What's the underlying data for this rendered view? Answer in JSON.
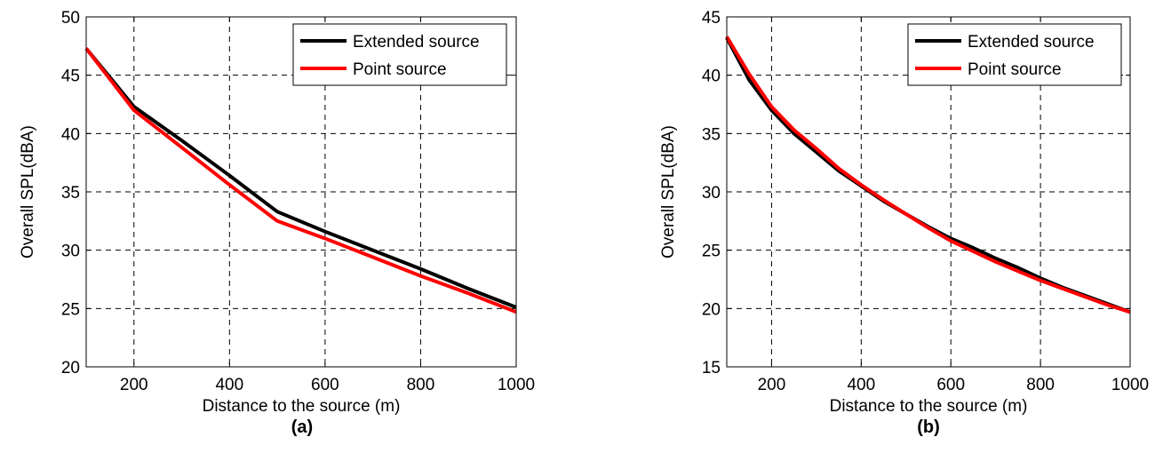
{
  "chart_data": [
    {
      "type": "line",
      "caption": "(a)",
      "xlabel": "Distance to the source (m)",
      "ylabel": "Overall SPL(dBA)",
      "xlim": [
        100,
        1000
      ],
      "ylim": [
        20,
        50
      ],
      "xticks": [
        200,
        400,
        600,
        800,
        1000
      ],
      "yticks": [
        20,
        25,
        30,
        35,
        40,
        45,
        50
      ],
      "grid": true,
      "legend_position": "top-right",
      "series": [
        {
          "name": "Extended source",
          "color": "#000000",
          "x": [
            100,
            200,
            300,
            400,
            500,
            600,
            700,
            800,
            900,
            1000
          ],
          "y": [
            47.3,
            42.3,
            39.4,
            36.4,
            33.3,
            31.6,
            30.0,
            28.4,
            26.7,
            25.1
          ]
        },
        {
          "name": "Point source",
          "color": "#ff0000",
          "x": [
            100,
            200,
            300,
            400,
            500,
            600,
            700,
            800,
            900,
            1000
          ],
          "y": [
            47.3,
            42.0,
            38.8,
            35.6,
            32.5,
            31.0,
            29.4,
            27.8,
            26.3,
            24.7
          ]
        }
      ]
    },
    {
      "type": "line",
      "caption": "(b)",
      "xlabel": "Distance to the source (m)",
      "ylabel": "Overall SPL(dBA)",
      "xlim": [
        100,
        1000
      ],
      "ylim": [
        15,
        45
      ],
      "xticks": [
        200,
        400,
        600,
        800,
        1000
      ],
      "yticks": [
        15,
        20,
        25,
        30,
        35,
        40,
        45
      ],
      "grid": true,
      "legend_position": "top-right",
      "series": [
        {
          "name": "Extended source",
          "color": "#000000",
          "x": [
            100,
            150,
            200,
            250,
            300,
            350,
            400,
            450,
            500,
            550,
            600,
            650,
            700,
            750,
            800,
            850,
            900,
            950,
            1000
          ],
          "y": [
            43.2,
            39.6,
            37.0,
            35.0,
            33.4,
            31.8,
            30.5,
            29.2,
            28.1,
            27.0,
            26.0,
            25.2,
            24.3,
            23.5,
            22.6,
            21.8,
            21.1,
            20.4,
            19.7
          ]
        },
        {
          "name": "Point source",
          "color": "#ff0000",
          "x": [
            100,
            150,
            200,
            250,
            300,
            350,
            400,
            450,
            500,
            550,
            600,
            650,
            700,
            750,
            800,
            850,
            900,
            950,
            1000
          ],
          "y": [
            43.3,
            40.1,
            37.3,
            35.3,
            33.7,
            32.0,
            30.6,
            29.3,
            28.1,
            26.9,
            25.8,
            24.9,
            24.0,
            23.2,
            22.4,
            21.7,
            21.0,
            20.3,
            19.7
          ]
        }
      ]
    }
  ]
}
